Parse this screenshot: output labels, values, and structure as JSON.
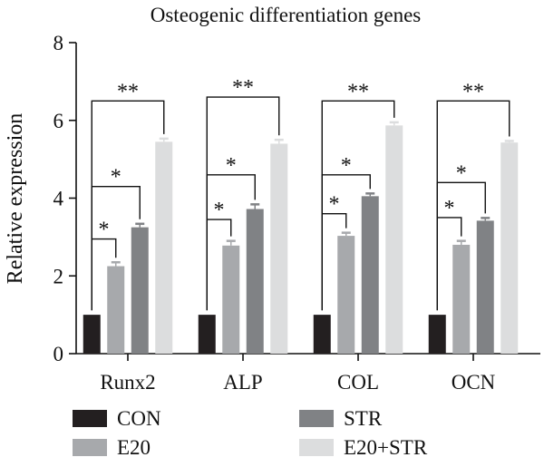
{
  "chart_data": {
    "type": "bar",
    "title": "Osteogenic differentiation genes",
    "xlabel": "",
    "ylabel": "Relative expression",
    "ylim": [
      0,
      8
    ],
    "yticks": [
      "0",
      "2",
      "4",
      "6",
      "8"
    ],
    "grid": false,
    "legend_position": "bottom",
    "categories": [
      "Runx2",
      "ALP",
      "COL",
      "OCN"
    ],
    "series": [
      {
        "name": "CON",
        "color": "#231f20",
        "values": [
          1.0,
          1.0,
          1.0,
          1.0
        ],
        "errors": [
          0.0,
          0.0,
          0.0,
          0.0
        ]
      },
      {
        "name": "E20",
        "color": "#a7a9ac",
        "values": [
          2.25,
          2.78,
          3.03,
          2.8
        ],
        "errors": [
          0.1,
          0.12,
          0.08,
          0.1
        ]
      },
      {
        "name": "STR",
        "color": "#808285",
        "values": [
          3.25,
          3.72,
          4.05,
          3.42
        ],
        "errors": [
          0.09,
          0.12,
          0.07,
          0.07
        ]
      },
      {
        "name": "E20+STR",
        "color": "#dcddde",
        "values": [
          5.45,
          5.4,
          5.87,
          5.43
        ],
        "errors": [
          0.08,
          0.1,
          0.08,
          0.04
        ]
      }
    ],
    "significance": [
      {
        "compare": [
          "CON",
          "E20"
        ],
        "label": "*",
        "heights": [
          2.95,
          3.45,
          3.6,
          3.5
        ]
      },
      {
        "compare": [
          "CON",
          "STR"
        ],
        "label": "*",
        "heights": [
          4.3,
          4.6,
          4.6,
          4.4
        ]
      },
      {
        "compare": [
          "CON",
          "E20+STR"
        ],
        "label": "**",
        "heights": [
          6.5,
          6.6,
          6.5,
          6.5
        ]
      }
    ]
  }
}
